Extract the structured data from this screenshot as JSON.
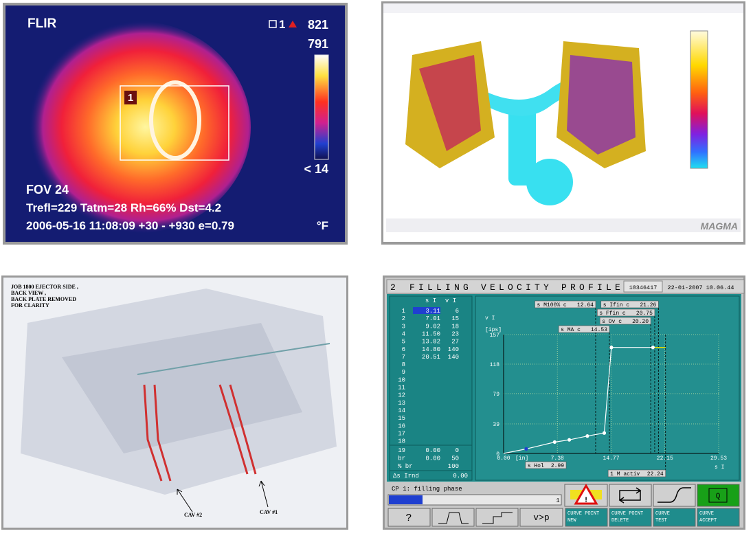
{
  "thermal": {
    "brand": "FLIR",
    "spot_label": "1",
    "max": "821",
    "span_top": "791",
    "span_bottom": "< 14",
    "box_label": "1",
    "fov": "FOV 24",
    "params": "Trefl=229 Tatm=28 Rh=66% Dst=4.2",
    "timestamp": "2006-05-16 11:08:09 +30 - +930 e=0.79",
    "unit": "°F"
  },
  "simulation": {
    "logo": "MAGMA"
  },
  "cad": {
    "note": [
      "JOB 1800  EJECTOR SIDE ,",
      "BACK  VIEW ,",
      "BACK PLATE REMOVED",
      "FOR CLARITY"
    ],
    "labels": [
      "CAV #2",
      "CAV #1"
    ]
  },
  "chart_data": {
    "type": "line",
    "screen_number": "2",
    "title": "FILLING VELOCITY PROFILE",
    "machine_id": "10346417",
    "datetime": "22-01-2007 10.06.44",
    "table_headers": [
      "s I",
      "v I"
    ],
    "point_numbers": [
      "1",
      "2",
      "3",
      "4",
      "5",
      "6",
      "7",
      "8",
      "9",
      "10",
      "11",
      "12",
      "13",
      "14",
      "15",
      "16",
      "17",
      "18"
    ],
    "x": [
      3.11,
      7.01,
      9.02,
      11.5,
      13.82,
      14.8,
      20.51
    ],
    "x_labels": [
      "3.11",
      "7.01",
      "9.02",
      "11.50",
      "13.82",
      "14.80",
      "20.51"
    ],
    "values": [
      6,
      15,
      18,
      23,
      27,
      140,
      140
    ],
    "color": "#ffffff",
    "selected_color": "#1f3fd0",
    "tail_color": "#e6dc00",
    "footer_rows": [
      {
        "label": "19",
        "s": "0.00",
        "v": "0"
      },
      {
        "label": "br",
        "s": "0.00",
        "v": "50"
      },
      {
        "label": "% br",
        "v": "100"
      }
    ],
    "delta_label": "Δs Irnd",
    "delta_value": "0.00",
    "y_label": "v I",
    "y_unit": "[ips]",
    "x_label": "s I",
    "x_unit": "[in]",
    "xlim": [
      0,
      29.53
    ],
    "xticks": [
      {
        "value": 0,
        "label": "0.00"
      },
      7.38,
      14.77,
      22.15,
      29.53
    ],
    "ylim": [
      0,
      157
    ],
    "yticks": [
      0,
      39,
      79,
      118,
      157
    ],
    "grid": true,
    "annotations_top": [
      {
        "label": "s M100%  c",
        "value": 12.64
      },
      {
        "label": "s Ifin  c",
        "value": 21.26
      },
      {
        "label": "s Ffin  c",
        "value": 20.75
      },
      {
        "label": "s Ov  c",
        "value": 20.2,
        "value_label": "20.20"
      },
      {
        "label": "s MA  c",
        "value": 14.53
      }
    ],
    "annotations_bottom": [
      {
        "label": "s Hol",
        "value": 2.99
      },
      {
        "label": "1 M activ",
        "value": 22.24
      }
    ],
    "status": "CP 1: filling phase",
    "step": "1",
    "buttons_top": [
      "Q"
    ],
    "buttons_bottom": [
      "?",
      "v>p"
    ],
    "curve_buttons": [
      [
        "CURVE POINT",
        "NEW"
      ],
      [
        "CURVE POINT",
        "DELETE"
      ],
      [
        "CURVE",
        "TEST"
      ],
      [
        "CURVE",
        "ACCEPT"
      ]
    ]
  }
}
